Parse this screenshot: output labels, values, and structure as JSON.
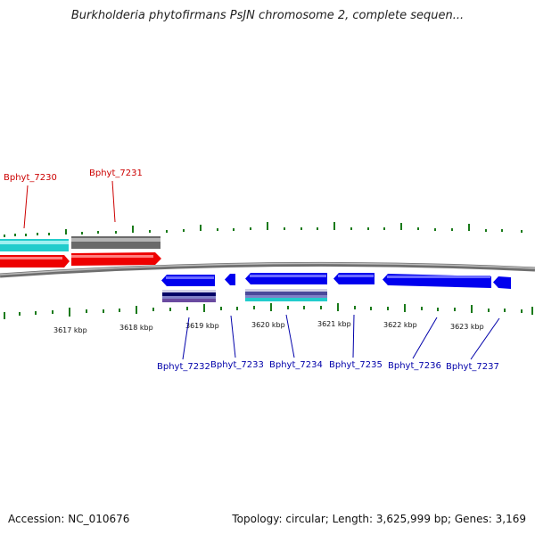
{
  "title": "Burkholderia phytofirmans PsJN chromosome 2, complete sequen...",
  "footer": {
    "accession": "Accession: NC_010676",
    "topology": "Topology: circular; Length: 3,625,999 bp; Genes: 3,169"
  },
  "colors": {
    "forward_label": "#cc0000",
    "reverse_label": "#0000aa",
    "tick": "#1a7a1a",
    "backbone": "#8a8a8a",
    "gene_blue": "#0000ee",
    "gene_red": "#ee0000",
    "gene_cyan": "#22cccc",
    "gene_gray": "#6a6a6a"
  },
  "kbp_labels": [
    "3617 kbp",
    "3618 kbp",
    "3619 kbp",
    "3620 kbp",
    "3621 kbp",
    "3622 kbp",
    "3623 kbp"
  ],
  "forward_genes": [
    "Bphyt_7230",
    "Bphyt_7231"
  ],
  "reverse_genes": [
    "Bphyt_7232",
    "Bphyt_7233",
    "Bphyt_7234",
    "Bphyt_7235",
    "Bphyt_7236",
    "Bphyt_7237"
  ]
}
